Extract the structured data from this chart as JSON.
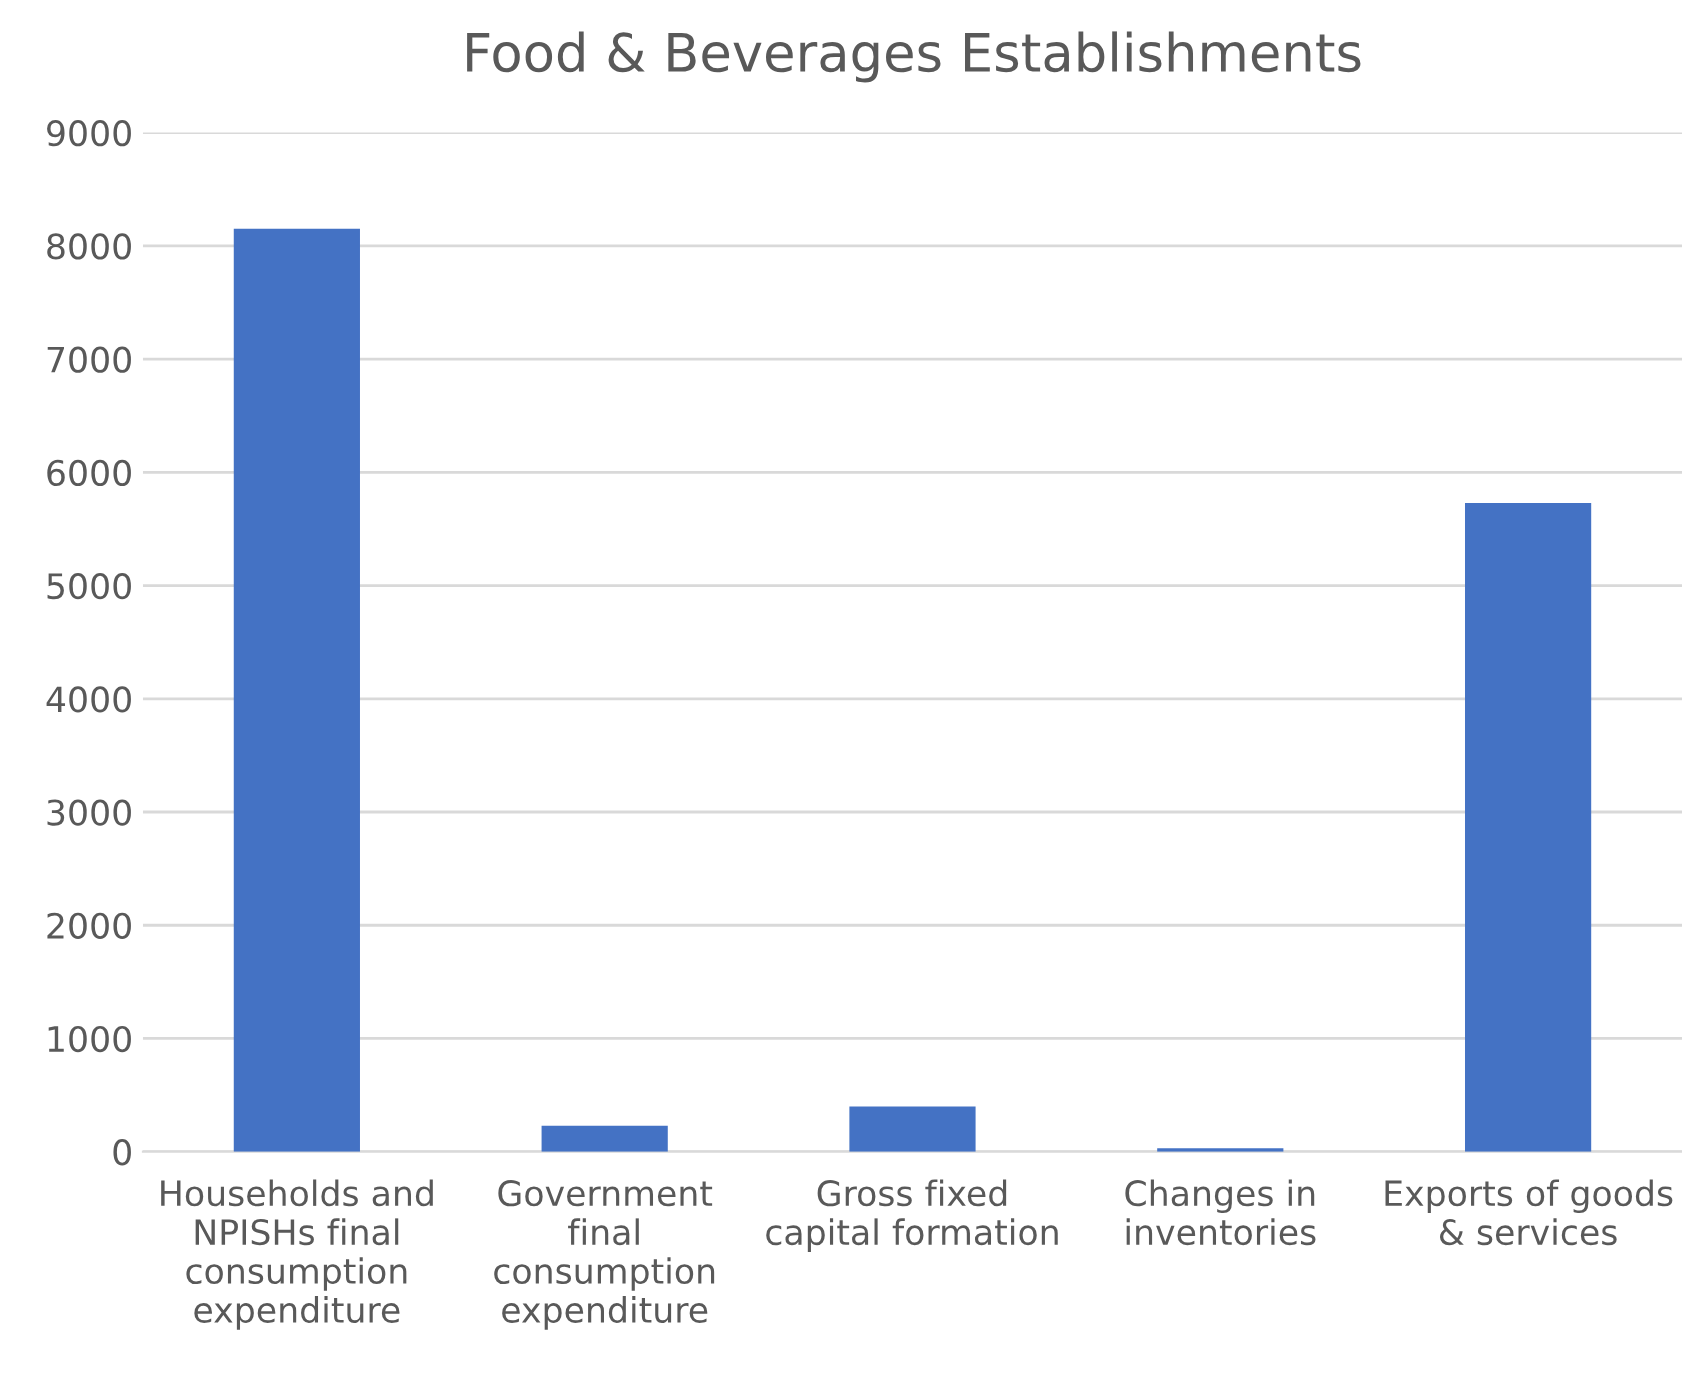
{
  "chart_data": {
    "type": "bar",
    "title": "Food & Beverages Establishments",
    "categories": [
      "Households and\nNPISHs final\nconsumption\nexpenditure",
      "Government\nfinal\nconsumption\nexpenditure",
      "Gross fixed\ncapital formation",
      "Changes in\ninventories",
      "Exports of goods\n& services"
    ],
    "values": [
      8150,
      230,
      400,
      30,
      5730
    ],
    "color": "#4472c4",
    "ylim": [
      0,
      9000
    ],
    "yticks": [
      0,
      1000,
      2000,
      3000,
      4000,
      5000,
      6000,
      7000,
      8000,
      9000
    ],
    "grid": "y"
  }
}
